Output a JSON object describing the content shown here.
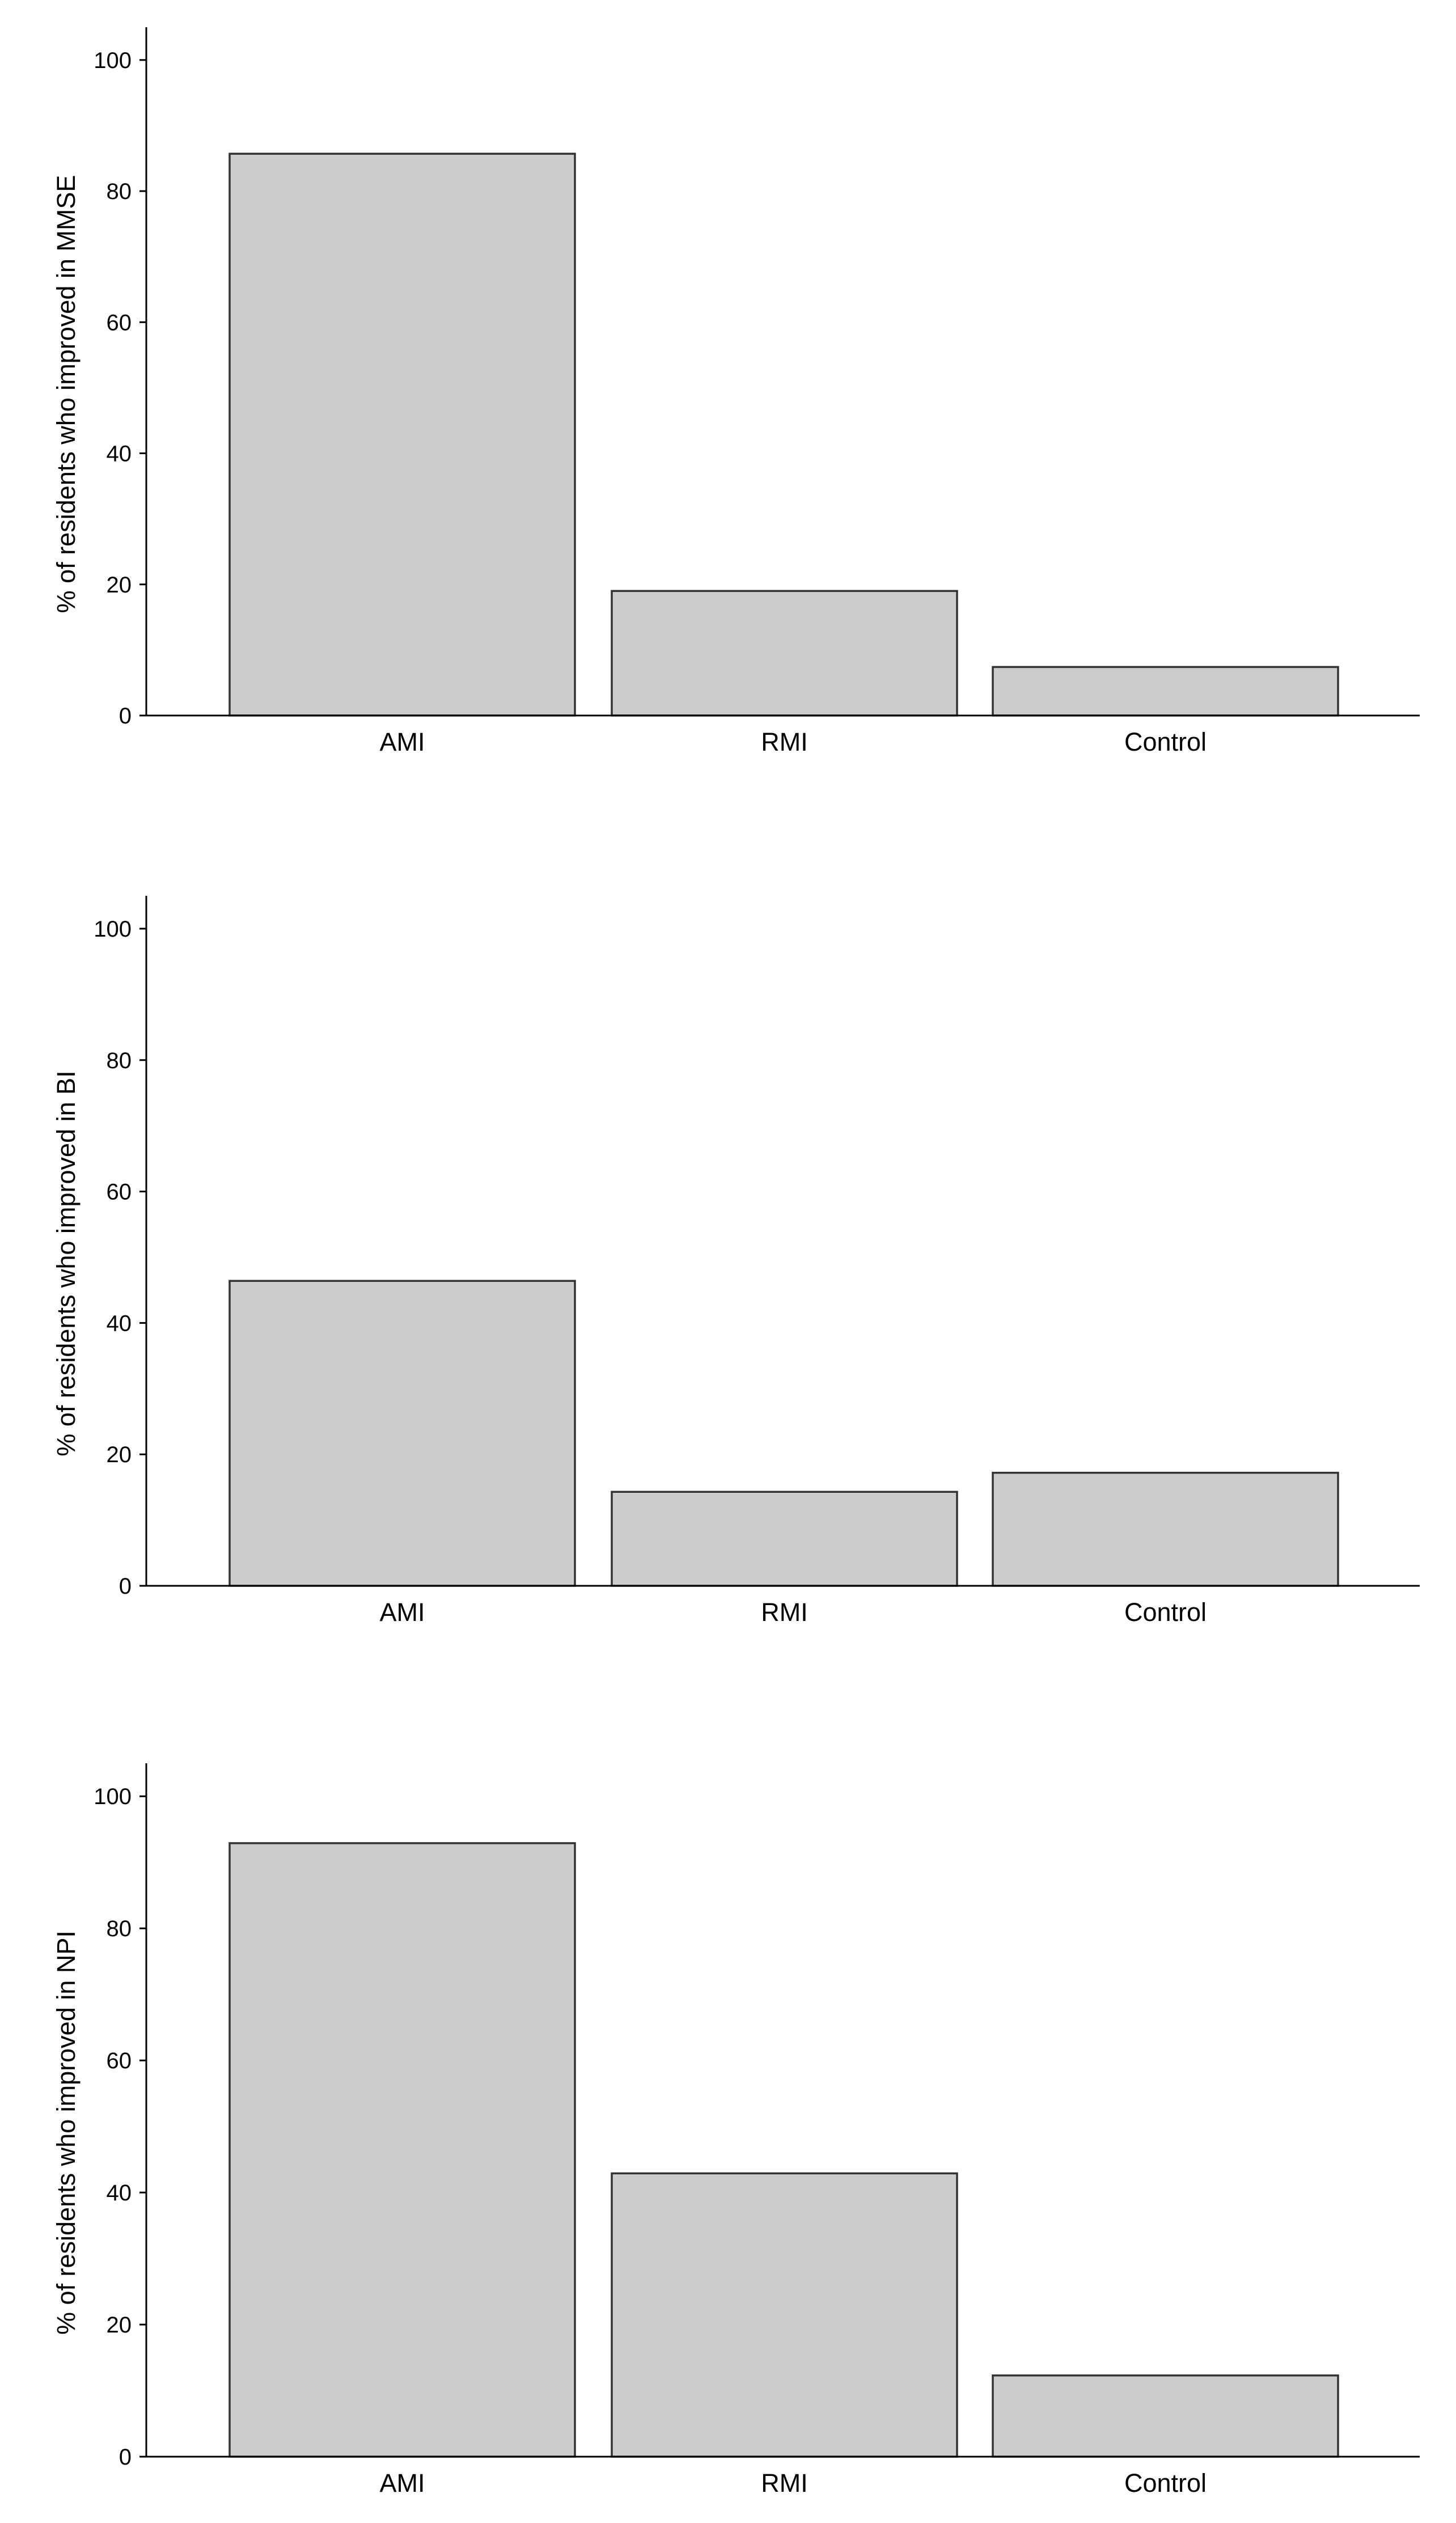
{
  "chart_data": [
    {
      "type": "bar",
      "categories": [
        "AMI",
        "RMI",
        "Control"
      ],
      "values": [
        85.7,
        19.0,
        7.4
      ],
      "title": "",
      "xlabel": "",
      "ylabel": "% of residents who improved in MMSE",
      "ylim": [
        0,
        105
      ],
      "yticks": [
        0,
        20,
        40,
        60,
        80,
        100
      ],
      "grid": false,
      "bar_color": "#cccccc",
      "bar_edge_color": "#333333"
    },
    {
      "type": "bar",
      "categories": [
        "AMI",
        "RMI",
        "Control"
      ],
      "values": [
        46.4,
        14.3,
        17.2
      ],
      "title": "",
      "xlabel": "",
      "ylabel": "% of residents who improved in BI",
      "ylim": [
        0,
        105
      ],
      "yticks": [
        0,
        20,
        40,
        60,
        80,
        100
      ],
      "grid": false,
      "bar_color": "#cccccc",
      "bar_edge_color": "#333333"
    },
    {
      "type": "bar",
      "categories": [
        "AMI",
        "RMI",
        "Control"
      ],
      "values": [
        92.9,
        42.9,
        12.3
      ],
      "title": "",
      "xlabel": "",
      "ylabel": "% of residents who improved in NPI",
      "ylim": [
        0,
        105
      ],
      "yticks": [
        0,
        20,
        40,
        60,
        80,
        100
      ],
      "grid": false,
      "bar_color": "#cccccc",
      "bar_edge_color": "#333333"
    }
  ]
}
